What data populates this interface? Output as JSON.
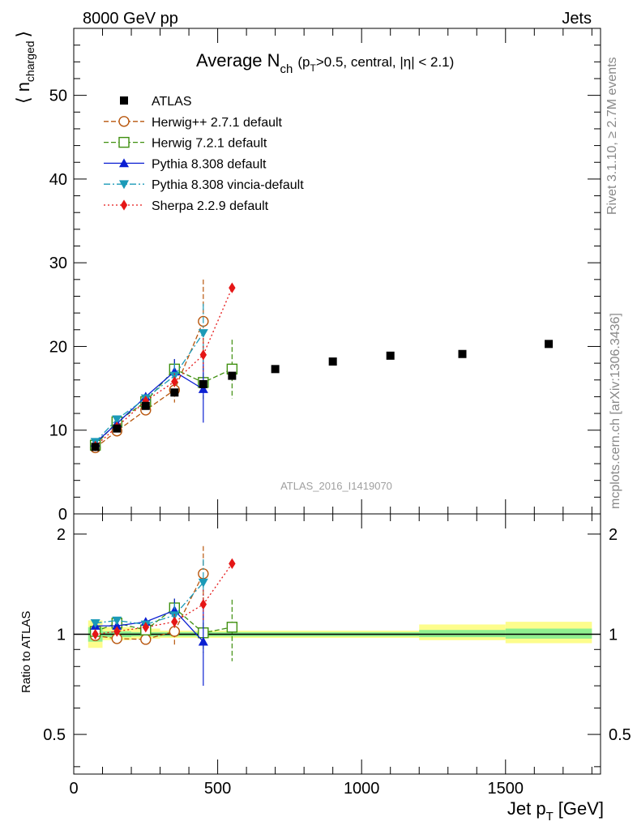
{
  "header": {
    "energy_label": "8000 GeV pp",
    "process_label": "Jets",
    "rivet_label": "Rivet 3.1.10, ≥ 2.7M events",
    "mcplots_label": "mcplots.cern.ch [arXiv:1306.3436]",
    "analysis_id": "ATLAS_2016_I1419070"
  },
  "chart_data": [
    {
      "type": "scatter",
      "title_main": "Average N",
      "title_sub": "ch",
      "title_rest": "(p",
      "title_rest_sub": "T",
      "title_tail": ">0.5, central, |η| < 2.1)",
      "ylabel_main": "⟨ n",
      "ylabel_sub": "charged",
      "ylabel_close": "⟩",
      "ylim": [
        0,
        58
      ],
      "yticks": [
        0,
        10,
        20,
        30,
        40,
        50
      ],
      "xlim": [
        0,
        1830
      ],
      "series": [
        {
          "name": "ATLAS",
          "color": "#000000",
          "marker": "square",
          "dash": "none",
          "x": [
            75,
            150,
            250,
            350,
            450,
            550,
            700,
            900,
            1100,
            1350,
            1650
          ],
          "y": [
            8.0,
            10.2,
            12.9,
            14.5,
            15.5,
            16.5,
            17.3,
            18.2,
            18.9,
            19.1,
            20.3
          ]
        },
        {
          "name": "Herwig++ 2.7.1 default",
          "color": "#b8560d",
          "marker": "circle-open",
          "dash": "6,3",
          "x": [
            75,
            150,
            250,
            350,
            450
          ],
          "y": [
            7.9,
            9.9,
            12.4,
            14.8,
            23.0
          ],
          "err": [
            0.2,
            0.3,
            0.4,
            1.5,
            5.0
          ]
        },
        {
          "name": "Herwig 7.2.1 default",
          "color": "#3f8f0f",
          "marker": "square-open",
          "dash": "6,3",
          "x": [
            75,
            150,
            250,
            350,
            450,
            550
          ],
          "y": [
            8.2,
            11.0,
            13.4,
            17.3,
            15.7,
            17.3
          ],
          "err": [
            0.2,
            0.3,
            0.5,
            1.2,
            2.0,
            3.5
          ]
        },
        {
          "name": "Pythia 8.308 default",
          "color": "#0b1fd2",
          "marker": "triangle-up",
          "dash": "none",
          "x": [
            75,
            150,
            250,
            350,
            450
          ],
          "y": [
            8.5,
            10.8,
            14.0,
            17.0,
            14.9
          ],
          "err": [
            0.2,
            0.3,
            0.5,
            1.5,
            4.0
          ]
        },
        {
          "name": "Pythia 8.308 vincia-default",
          "color": "#1b9ab8",
          "marker": "triangle-down",
          "dash": "8,3,2,3",
          "x": [
            75,
            150,
            250,
            350,
            450
          ],
          "y": [
            8.6,
            11.3,
            13.8,
            16.5,
            21.6
          ],
          "err": [
            0.2,
            0.3,
            0.5,
            1.5,
            3.5
          ]
        },
        {
          "name": "Sherpa 2.2.9 default",
          "color": "#e51616",
          "marker": "diamond",
          "dash": "2,3",
          "x": [
            75,
            150,
            250,
            350,
            450,
            550
          ],
          "y": [
            8.1,
            10.4,
            13.5,
            15.8,
            19.0,
            27.0
          ],
          "err": [
            0.2,
            0.3,
            0.5,
            1.0,
            2.0,
            0.3
          ]
        }
      ]
    },
    {
      "type": "scatter",
      "ylabel": "Ratio to ATLAS",
      "ylim": [
        0.38,
        2.3
      ],
      "yticks": [
        0.5,
        1,
        2
      ],
      "ytick_labels": [
        "0.5",
        "1",
        "2"
      ],
      "xticks": [
        0,
        500,
        1000,
        1500
      ],
      "xlabel_main": "Jet p",
      "xlabel_sub": "T",
      "xlabel_unit": "[GeV]",
      "xlim": [
        0,
        1830
      ],
      "band_yellow": [
        {
          "x0": 50,
          "x1": 100,
          "lo": 0.91,
          "hi": 1.1
        },
        {
          "x0": 100,
          "x1": 200,
          "lo": 0.96,
          "hi": 1.05
        },
        {
          "x0": 200,
          "x1": 300,
          "lo": 0.97,
          "hi": 1.04
        },
        {
          "x0": 300,
          "x1": 1200,
          "lo": 0.975,
          "hi": 1.025
        },
        {
          "x0": 1200,
          "x1": 1500,
          "lo": 0.96,
          "hi": 1.07
        },
        {
          "x0": 1500,
          "x1": 1800,
          "lo": 0.94,
          "hi": 1.09
        }
      ],
      "band_green": [
        {
          "x0": 50,
          "x1": 100,
          "lo": 0.95,
          "hi": 1.05
        },
        {
          "x0": 100,
          "x1": 200,
          "lo": 0.98,
          "hi": 1.02
        },
        {
          "x0": 200,
          "x1": 1200,
          "lo": 0.985,
          "hi": 1.015
        },
        {
          "x0": 1200,
          "x1": 1500,
          "lo": 0.98,
          "hi": 1.03
        },
        {
          "x0": 1500,
          "x1": 1800,
          "lo": 0.97,
          "hi": 1.04
        }
      ],
      "series": [
        {
          "name": "Herwig++ 2.7.1 default",
          "color": "#b8560d",
          "marker": "circle-open",
          "dash": "6,3",
          "x": [
            75,
            150,
            250,
            350,
            450
          ],
          "y": [
            0.99,
            0.97,
            0.965,
            1.02,
            1.52
          ],
          "err": [
            0.03,
            0.03,
            0.03,
            0.1,
            0.32
          ]
        },
        {
          "name": "Herwig 7.2.1 default",
          "color": "#3f8f0f",
          "marker": "square-open",
          "dash": "6,3",
          "x": [
            75,
            150,
            250,
            350,
            450,
            550
          ],
          "y": [
            1.02,
            1.08,
            1.03,
            1.2,
            1.01,
            1.05
          ],
          "err": [
            0.02,
            0.02,
            0.03,
            0.08,
            0.13,
            0.22
          ]
        },
        {
          "name": "Pythia 8.308 default",
          "color": "#0b1fd2",
          "marker": "triangle-up",
          "dash": "none",
          "x": [
            75,
            150,
            250,
            350,
            450
          ],
          "y": [
            1.06,
            1.06,
            1.09,
            1.18,
            0.95
          ],
          "err": [
            0.02,
            0.02,
            0.03,
            0.1,
            0.25
          ]
        },
        {
          "name": "Pythia 8.308 vincia-default",
          "color": "#1b9ab8",
          "marker": "triangle-down",
          "dash": "8,3,2,3",
          "x": [
            75,
            150,
            250,
            350,
            450
          ],
          "y": [
            1.08,
            1.1,
            1.07,
            1.14,
            1.43
          ],
          "err": [
            0.02,
            0.02,
            0.03,
            0.1,
            0.25
          ]
        },
        {
          "name": "Sherpa 2.2.9 default",
          "color": "#e51616",
          "marker": "diamond",
          "dash": "2,3",
          "x": [
            75,
            150,
            250,
            350,
            450,
            550
          ],
          "y": [
            1.0,
            1.02,
            1.05,
            1.09,
            1.23,
            1.63
          ],
          "err": [
            0.02,
            0.02,
            0.03,
            0.06,
            0.13,
            0.02
          ]
        }
      ]
    }
  ]
}
